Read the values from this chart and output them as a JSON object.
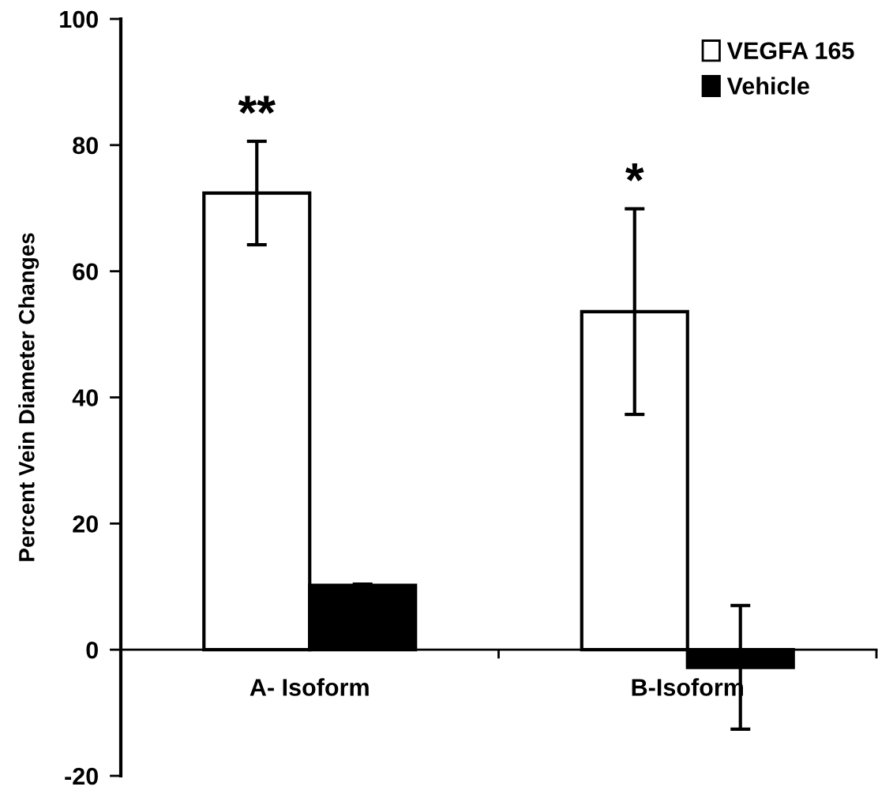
{
  "chart_data": {
    "type": "bar",
    "ylabel": "Percent Vein Diameter Changes",
    "categories": [
      "A- Isoform",
      "B-Isoform"
    ],
    "series": [
      {
        "name": "VEGFA 165",
        "color": "#ffffff",
        "values": [
          72.4,
          53.6
        ],
        "errors": [
          8.2,
          16.3
        ]
      },
      {
        "name": "Vehicle",
        "color": "#000000",
        "values": [
          10.2,
          -2.8
        ],
        "errors": [
          0.2,
          9.8
        ]
      }
    ],
    "ylim": [
      -20,
      100
    ],
    "yticks": [
      -20,
      0,
      20,
      40,
      60,
      80,
      100
    ],
    "annotations": [
      "**",
      "*"
    ],
    "grid": false,
    "legend": "top right"
  }
}
